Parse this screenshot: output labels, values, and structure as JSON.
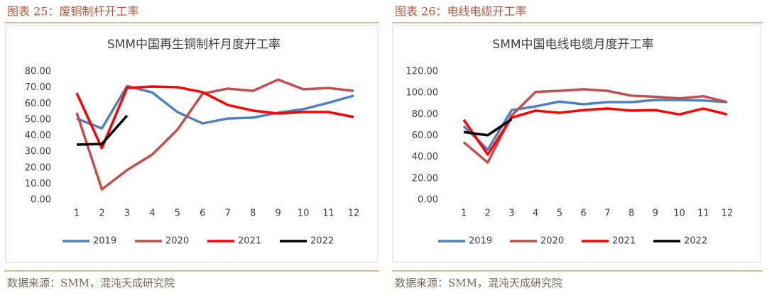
{
  "panels": [
    {
      "heading": "图表 25：废铜制杆开工率",
      "source": "数据来源：SMM，混沌天成研究院"
    },
    {
      "heading": "图表 26：电线电缆开工率",
      "source": "数据来源：SMM，混沌天成研究院"
    }
  ],
  "chart_data": [
    {
      "type": "line",
      "title": "SMM中国再生铜制杆月度开工率",
      "categories": [
        "1",
        "2",
        "3",
        "4",
        "5",
        "6",
        "7",
        "8",
        "9",
        "10",
        "11",
        "12"
      ],
      "ylim": [
        0,
        80
      ],
      "yticks": [
        {
          "value": 0,
          "label": "0.00"
        },
        {
          "value": 10,
          "label": "10.00"
        },
        {
          "value": 20,
          "label": "20.00"
        },
        {
          "value": 30,
          "label": "30.00"
        },
        {
          "value": 40,
          "label": "40.00"
        },
        {
          "value": 50,
          "label": "50.00"
        },
        {
          "value": 60,
          "label": "60.00"
        },
        {
          "value": 70,
          "label": "70.00"
        },
        {
          "value": 80,
          "label": "80.00"
        }
      ],
      "grid": false,
      "legend": "bottom",
      "series": [
        {
          "name": "2019",
          "color": "#4f81bd",
          "values": [
            50.8,
            44.6,
            71,
            67,
            54.8,
            47.7,
            50.8,
            51.3,
            54.4,
            56.6,
            60.6,
            65
          ]
        },
        {
          "name": "2020",
          "color": "#c0504d",
          "values": [
            54.4,
            6.6,
            18.6,
            28.3,
            43.8,
            66.3,
            69.4,
            68,
            75,
            69,
            69.8,
            68
          ]
        },
        {
          "name": "2021",
          "color": "#ff0000",
          "values": [
            66.7,
            32.3,
            69.8,
            70.7,
            70.3,
            67.2,
            59.2,
            55.7,
            53.9,
            54.8,
            54.8,
            51.7
          ]
        },
        {
          "name": "2022",
          "color": "#000000",
          "values": [
            34.5,
            34.9,
            52.6,
            null,
            null,
            null,
            null,
            null,
            null,
            null,
            null,
            null
          ]
        }
      ]
    },
    {
      "type": "line",
      "title": "SMM中国电线电缆月度开工率",
      "categories": [
        "1",
        "2",
        "3",
        "4",
        "5",
        "6",
        "7",
        "8",
        "9",
        "10",
        "11",
        "12"
      ],
      "ylim": [
        0,
        120
      ],
      "yticks": [
        {
          "value": 0,
          "label": "0.00"
        },
        {
          "value": 20,
          "label": "20.00"
        },
        {
          "value": 40,
          "label": "40.00"
        },
        {
          "value": 60,
          "label": "60.00"
        },
        {
          "value": 80,
          "label": "80.00"
        },
        {
          "value": 100,
          "label": "100.00"
        },
        {
          "value": 120,
          "label": "120.00"
        }
      ],
      "grid": false,
      "legend": "bottom",
      "series": [
        {
          "name": "2019",
          "color": "#4f81bd",
          "values": [
            69,
            47,
            84,
            87.5,
            92,
            89.5,
            91.5,
            91.5,
            93.5,
            93.5,
            93,
            91.5
          ]
        },
        {
          "name": "2020",
          "color": "#c0504d",
          "values": [
            54,
            35,
            79,
            101,
            102,
            103.5,
            102,
            97.5,
            96.5,
            95,
            97,
            91.5
          ]
        },
        {
          "name": "2021",
          "color": "#ff0000",
          "values": [
            75,
            42.5,
            77,
            83.5,
            81.5,
            84,
            85.5,
            83.5,
            84,
            80,
            85.5,
            80
          ]
        },
        {
          "name": "2022",
          "color": "#000000",
          "values": [
            63.5,
            60.5,
            75.5,
            null,
            null,
            null,
            null,
            null,
            null,
            null,
            null,
            null
          ]
        }
      ]
    }
  ]
}
